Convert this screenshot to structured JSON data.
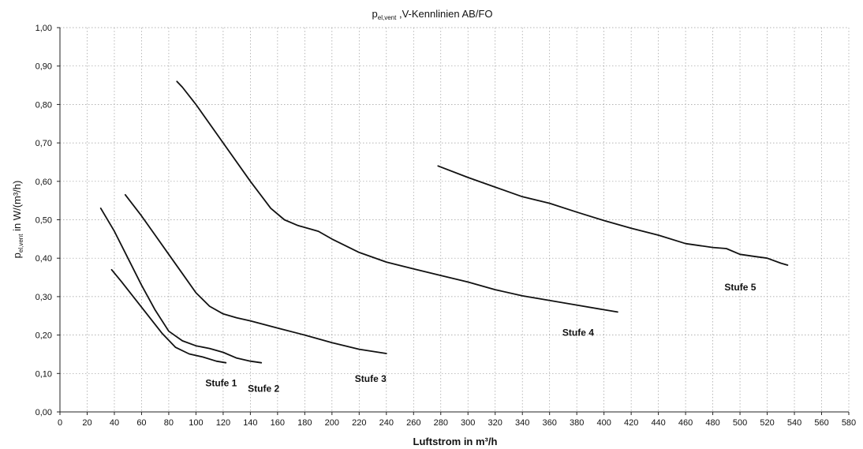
{
  "chart_data": {
    "type": "line",
    "title": {
      "main": "p",
      "subscript": "el,vent",
      "mid": " ,",
      "var": "V",
      "rest": "-Kennlinien AB/FO"
    },
    "xlabel": "Luftstrom in m³/h",
    "ylabel": {
      "main": "p",
      "subscript": "el,vent",
      "rest": " in W/(m³/h)"
    },
    "xlim": [
      0,
      580
    ],
    "ylim": [
      0,
      1.0
    ],
    "x_ticks": [
      "0",
      "20",
      "40",
      "60",
      "80",
      "100",
      "120",
      "140",
      "160",
      "180",
      "200",
      "220",
      "240",
      "260",
      "280",
      "300",
      "320",
      "340",
      "360",
      "380",
      "400",
      "420",
      "440",
      "460",
      "480",
      "500",
      "520",
      "540",
      "560",
      "580"
    ],
    "y_ticks": [
      "0,00",
      "0,10",
      "0,20",
      "0,30",
      "0,40",
      "0,50",
      "0,60",
      "0,70",
      "0,80",
      "0,90",
      "1,00"
    ],
    "grid": true,
    "series": [
      {
        "name": "Stufe 1",
        "x": [
          38,
          45,
          55,
          65,
          75,
          85,
          95,
          105,
          115,
          122
        ],
        "y": [
          0.37,
          0.34,
          0.295,
          0.25,
          0.205,
          0.168,
          0.151,
          0.143,
          0.132,
          0.128
        ]
      },
      {
        "name": "Stufe 2",
        "x": [
          30,
          40,
          50,
          60,
          70,
          80,
          90,
          100,
          110,
          120,
          130,
          140,
          148
        ],
        "y": [
          0.53,
          0.47,
          0.4,
          0.33,
          0.265,
          0.21,
          0.185,
          0.172,
          0.165,
          0.155,
          0.14,
          0.132,
          0.128
        ]
      },
      {
        "name": "Stufe 3",
        "x": [
          48,
          60,
          70,
          80,
          90,
          100,
          110,
          120,
          130,
          140,
          160,
          180,
          200,
          220,
          240
        ],
        "y": [
          0.565,
          0.51,
          0.46,
          0.41,
          0.36,
          0.31,
          0.275,
          0.255,
          0.245,
          0.237,
          0.218,
          0.2,
          0.18,
          0.163,
          0.152
        ]
      },
      {
        "name": "Stufe 4",
        "x": [
          86,
          90,
          100,
          120,
          140,
          155,
          165,
          175,
          190,
          200,
          220,
          240,
          260,
          280,
          300,
          320,
          340,
          360,
          380,
          400,
          410
        ],
        "y": [
          0.86,
          0.845,
          0.8,
          0.7,
          0.6,
          0.53,
          0.5,
          0.485,
          0.47,
          0.45,
          0.415,
          0.39,
          0.372,
          0.355,
          0.338,
          0.318,
          0.302,
          0.29,
          0.278,
          0.266,
          0.26
        ]
      },
      {
        "name": "Stufe 5",
        "x": [
          278,
          300,
          320,
          340,
          360,
          380,
          400,
          420,
          440,
          460,
          480,
          490,
          500,
          510,
          520,
          530,
          535
        ],
        "y": [
          0.64,
          0.61,
          0.585,
          0.56,
          0.543,
          0.52,
          0.498,
          0.478,
          0.46,
          0.438,
          0.428,
          0.425,
          0.41,
          0.405,
          0.4,
          0.387,
          0.382
        ]
      }
    ]
  }
}
